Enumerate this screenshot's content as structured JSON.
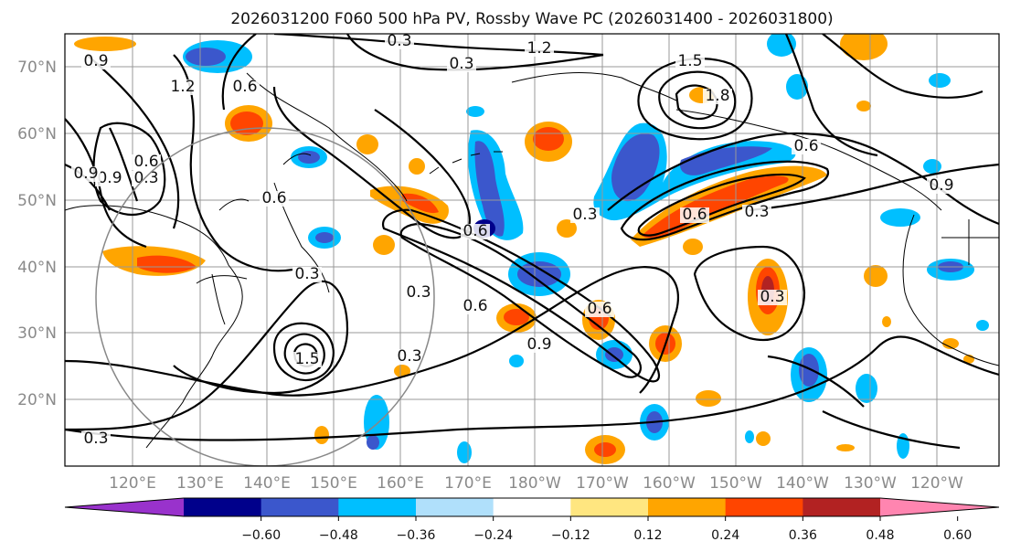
{
  "title": "2026031200 F060 500 hPa PV, Rossby Wave PC (2026031400 - 2026031800)",
  "lat_labels": [
    "70°N",
    "60°N",
    "50°N",
    "40°N",
    "30°N",
    "20°N"
  ],
  "lon_labels": [
    "120°E",
    "130°E",
    "140°E",
    "150°E",
    "160°E",
    "170°E",
    "180°W",
    "170°W",
    "160°W",
    "150°W",
    "140°W",
    "130°W",
    "120°W"
  ],
  "colorbar": {
    "ticks": [
      "−0.60",
      "−0.48",
      "−0.36",
      "−0.24",
      "−0.12",
      "0.12",
      "0.24",
      "0.36",
      "0.48",
      "0.60"
    ],
    "colors": [
      "#9932cc",
      "#00008b",
      "#3b57cc",
      "#00bfff",
      "#b0e0fb",
      "#ffffff",
      "#ffe680",
      "#ffa500",
      "#ff4500",
      "#b22222",
      "#ff85b0"
    ]
  },
  "contour_labels": [
    "0.9",
    "1.2",
    "0.6",
    "0.3",
    "1.2",
    "0.3",
    "1.5",
    "1.8",
    "0.6",
    "0.9",
    "0.3",
    "0.6",
    "0.9",
    "0.6",
    "0.3",
    "0.3",
    "0.6",
    "0.3",
    "0.6",
    "0.9",
    "0.6",
    "0.3",
    "0.3",
    "1.5",
    "0.3",
    "0.9",
    "0.6",
    "0.3"
  ]
}
